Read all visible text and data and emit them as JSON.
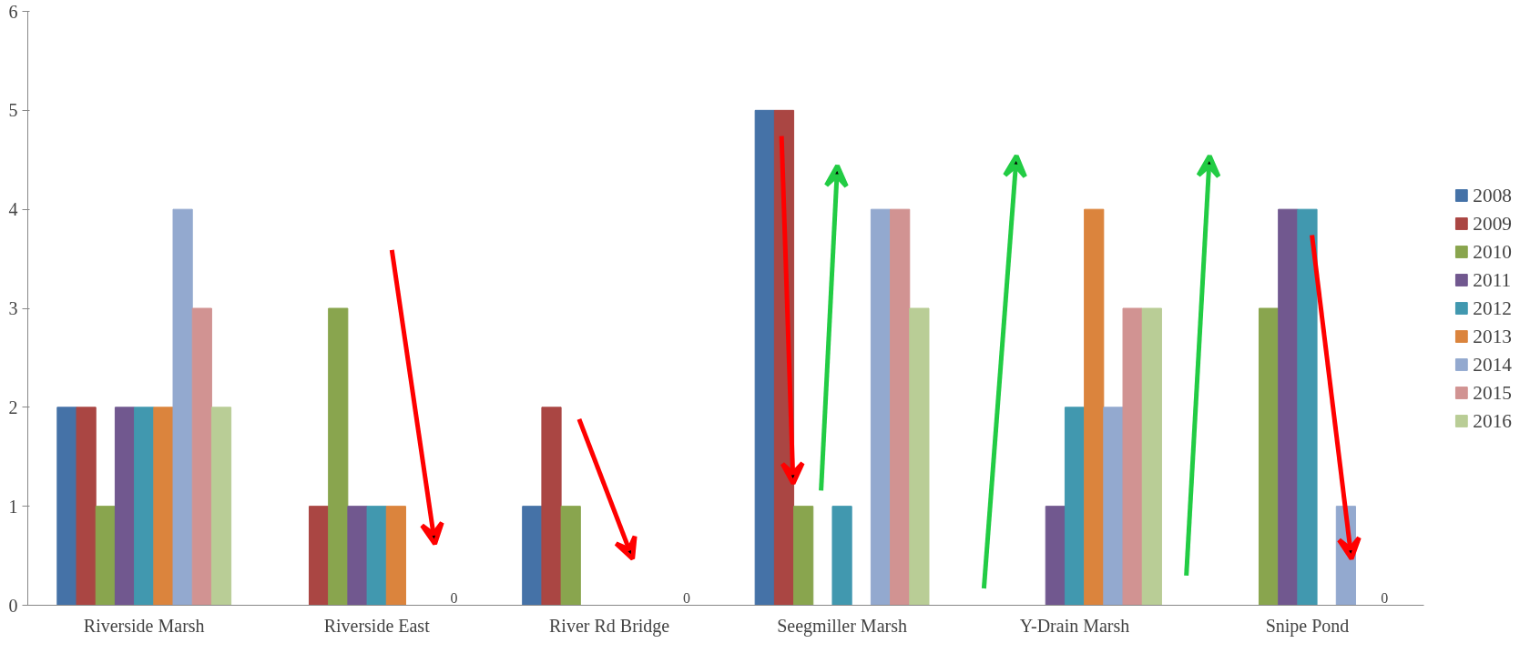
{
  "chart_data": {
    "type": "bar",
    "categories": [
      "Riverside Marsh",
      "Riverside East",
      "River Rd Bridge",
      "Seegmiller Marsh",
      "Y-Drain Marsh",
      "Snipe Pond"
    ],
    "series": [
      {
        "name": "2008",
        "color": "#4572a7",
        "values": [
          2,
          0,
          1,
          5,
          0,
          0
        ]
      },
      {
        "name": "2009",
        "color": "#aa4643",
        "values": [
          2,
          1,
          2,
          5,
          0,
          0
        ]
      },
      {
        "name": "2010",
        "color": "#89a54e",
        "values": [
          1,
          3,
          1,
          1,
          0,
          3
        ]
      },
      {
        "name": "2011",
        "color": "#71588f",
        "values": [
          2,
          1,
          0,
          0,
          1,
          4
        ]
      },
      {
        "name": "2012",
        "color": "#4198af",
        "values": [
          2,
          1,
          0,
          1,
          2,
          4
        ]
      },
      {
        "name": "2013",
        "color": "#db843d",
        "values": [
          2,
          1,
          0,
          0,
          4,
          0
        ]
      },
      {
        "name": "2014",
        "color": "#93a9cf",
        "values": [
          4,
          0,
          0,
          4,
          2,
          1
        ]
      },
      {
        "name": "2015",
        "color": "#d19392",
        "values": [
          3,
          0,
          0,
          4,
          3,
          0
        ]
      },
      {
        "name": "2016",
        "color": "#b9cd96",
        "values": [
          2,
          0,
          0,
          3,
          3,
          0
        ],
        "value_labels": [
          null,
          "0",
          "0",
          null,
          null,
          "0"
        ]
      }
    ],
    "ylim": [
      0,
      6
    ],
    "yticks": [
      0,
      1,
      2,
      3,
      4,
      5,
      6
    ],
    "grid": false,
    "legend": "right"
  }
}
